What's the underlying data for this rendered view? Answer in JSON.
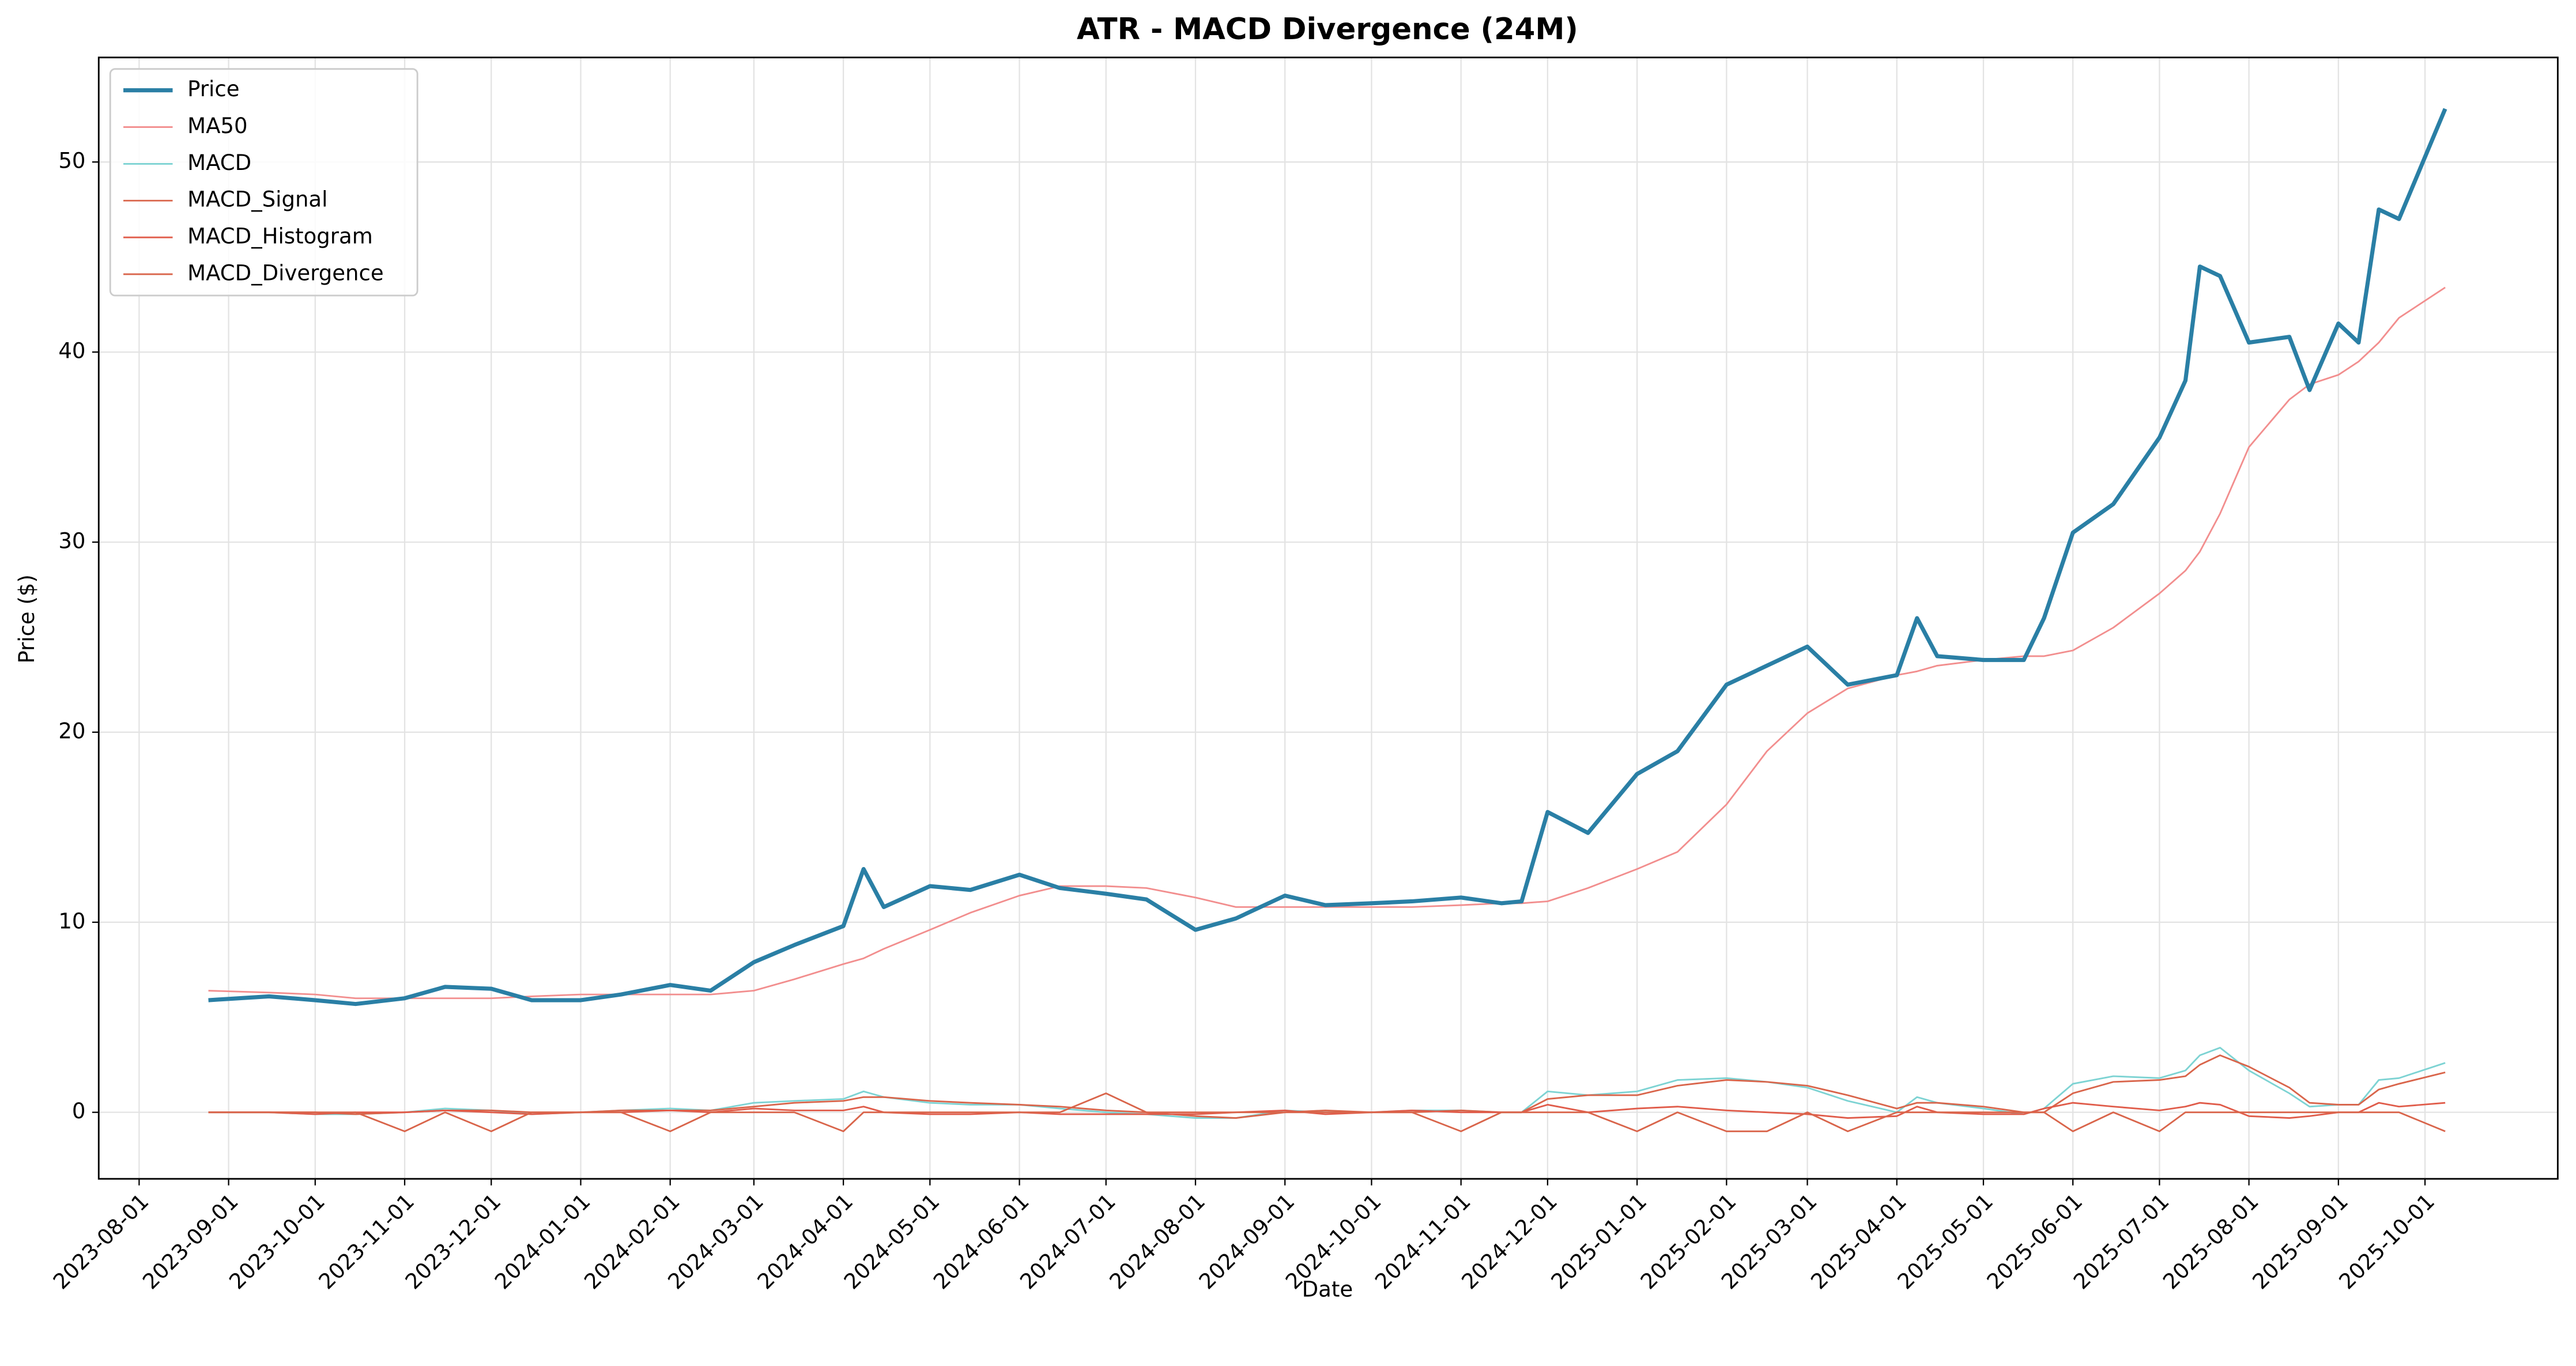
{
  "chart_data": {
    "type": "line",
    "title": "ATR - MACD Divergence (24M)",
    "x_label": "Date",
    "y_label": "Price ($)",
    "x": [
      "2023-08-25",
      "2023-09-15",
      "2023-10-01",
      "2023-10-15",
      "2023-11-01",
      "2023-11-15",
      "2023-12-01",
      "2023-12-15",
      "2024-01-01",
      "2024-01-15",
      "2024-02-01",
      "2024-02-15",
      "2024-03-01",
      "2024-03-15",
      "2024-04-01",
      "2024-04-08",
      "2024-04-15",
      "2024-05-01",
      "2024-05-15",
      "2024-06-01",
      "2024-06-15",
      "2024-07-01",
      "2024-07-15",
      "2024-08-01",
      "2024-08-15",
      "2024-09-01",
      "2024-09-15",
      "2024-10-01",
      "2024-10-15",
      "2024-11-01",
      "2024-11-15",
      "2024-11-22",
      "2024-12-01",
      "2024-12-15",
      "2025-01-01",
      "2025-01-15",
      "2025-02-01",
      "2025-02-15",
      "2025-03-01",
      "2025-03-15",
      "2025-04-01",
      "2025-04-08",
      "2025-04-15",
      "2025-05-01",
      "2025-05-15",
      "2025-05-22",
      "2025-06-01",
      "2025-06-15",
      "2025-07-01",
      "2025-07-10",
      "2025-07-15",
      "2025-07-22",
      "2025-08-01",
      "2025-08-15",
      "2025-08-22",
      "2025-09-01",
      "2025-09-08",
      "2025-09-15",
      "2025-09-22",
      "2025-10-08"
    ],
    "series": [
      {
        "name": "Price",
        "color": "#2a7fa5",
        "width": 2.5,
        "values": [
          5.9,
          6.1,
          5.9,
          5.7,
          6.0,
          6.6,
          6.5,
          5.9,
          5.9,
          6.2,
          6.7,
          6.4,
          7.9,
          8.8,
          9.8,
          12.8,
          10.8,
          11.9,
          11.7,
          12.5,
          11.8,
          11.5,
          11.2,
          9.6,
          10.2,
          11.4,
          10.9,
          11.0,
          11.1,
          11.3,
          11.0,
          11.1,
          15.8,
          14.7,
          17.8,
          19.0,
          22.5,
          23.5,
          24.5,
          22.5,
          23.0,
          26.0,
          24.0,
          23.8,
          23.8,
          26.0,
          30.5,
          32.0,
          35.5,
          38.5,
          44.5,
          44.0,
          40.5,
          40.8,
          38.0,
          41.5,
          40.5,
          47.5,
          47.0,
          52.8
        ]
      },
      {
        "name": "MA50",
        "color": "#f28e8e",
        "width": 1,
        "values": [
          6.4,
          6.3,
          6.2,
          6.0,
          6.0,
          6.0,
          6.0,
          6.1,
          6.2,
          6.2,
          6.2,
          6.2,
          6.4,
          7.0,
          7.8,
          8.1,
          8.6,
          9.6,
          10.5,
          11.4,
          11.9,
          11.9,
          11.8,
          11.3,
          10.8,
          10.8,
          10.8,
          10.8,
          10.8,
          10.9,
          11.0,
          11.0,
          11.1,
          11.8,
          12.8,
          13.7,
          16.2,
          19.0,
          21.0,
          22.3,
          23.0,
          23.2,
          23.5,
          23.8,
          24.0,
          24.0,
          24.3,
          25.5,
          27.3,
          28.5,
          29.5,
          31.5,
          35.0,
          37.5,
          38.3,
          38.8,
          39.5,
          40.5,
          41.8,
          43.4
        ]
      },
      {
        "name": "MACD",
        "color": "#7dd3d3",
        "width": 1,
        "values": [
          0,
          0,
          -0.1,
          -0.1,
          0,
          0.2,
          0.1,
          -0.1,
          0,
          0.1,
          0.2,
          0.1,
          0.5,
          0.6,
          0.7,
          1.1,
          0.8,
          0.5,
          0.4,
          0.4,
          0.2,
          0,
          -0.1,
          -0.3,
          -0.3,
          0.1,
          0,
          0,
          0.1,
          0.1,
          0,
          0,
          1.1,
          0.9,
          1.1,
          1.7,
          1.8,
          1.6,
          1.3,
          0.6,
          0,
          0.8,
          0.5,
          0.2,
          -0.1,
          0.2,
          1.5,
          1.9,
          1.8,
          2.2,
          3.0,
          3.4,
          2.2,
          1.0,
          0.3,
          0.4,
          0.4,
          1.7,
          1.8,
          2.6
        ]
      },
      {
        "name": "MACD_Signal",
        "color": "#d9654b",
        "width": 1,
        "values": [
          0,
          0,
          0,
          -0.1,
          0,
          0.1,
          0.1,
          0,
          0,
          0.1,
          0.1,
          0.1,
          0.3,
          0.5,
          0.6,
          0.8,
          0.8,
          0.6,
          0.5,
          0.4,
          0.3,
          0.1,
          0,
          -0.2,
          -0.3,
          0,
          0.1,
          0,
          0,
          0.1,
          0,
          0,
          0.7,
          0.9,
          0.9,
          1.4,
          1.7,
          1.6,
          1.4,
          0.9,
          0.2,
          0.5,
          0.5,
          0.3,
          0,
          0,
          1.0,
          1.6,
          1.7,
          1.9,
          2.5,
          3.0,
          2.4,
          1.3,
          0.5,
          0.4,
          0.4,
          1.2,
          1.5,
          2.1
        ]
      },
      {
        "name": "MACD_Histogram",
        "color": "#e05c4a",
        "width": 1,
        "values": [
          0,
          0,
          -0.1,
          0,
          0,
          0.1,
          0,
          -0.1,
          0,
          0,
          0.1,
          0,
          0.2,
          0.1,
          0.1,
          0.3,
          0,
          -0.1,
          -0.1,
          0,
          -0.1,
          -0.1,
          -0.1,
          -0.1,
          0,
          0.1,
          -0.1,
          0,
          0.1,
          0,
          0,
          0,
          0.4,
          0,
          0.2,
          0.3,
          0.1,
          0,
          -0.1,
          -0.3,
          -0.2,
          0.3,
          0,
          -0.1,
          -0.1,
          0.2,
          0.5,
          0.3,
          0.1,
          0.3,
          0.5,
          0.4,
          -0.2,
          -0.3,
          -0.2,
          0,
          0,
          0.5,
          0.3,
          0.5
        ]
      },
      {
        "name": "MACD_Divergence",
        "color": "#d9654b",
        "width": 1,
        "values": [
          0,
          0,
          0,
          0,
          -1,
          0,
          -1,
          0,
          0,
          0,
          -1,
          0,
          0,
          0,
          -1,
          0,
          0,
          0,
          0,
          0,
          0,
          1,
          0,
          0,
          0,
          0,
          0,
          0,
          0,
          -1,
          0,
          0,
          0,
          0,
          -1,
          0,
          -1,
          -1,
          0,
          -1,
          0,
          0,
          0,
          0,
          0,
          0,
          -1,
          0,
          -1,
          0,
          0,
          0,
          0,
          0,
          0,
          0,
          0,
          0,
          0,
          -1
        ]
      }
    ],
    "xlim": [
      "2023-07-18",
      "2025-11-16"
    ],
    "xticks": [
      "2023-08-01",
      "2023-09-01",
      "2023-10-01",
      "2023-11-01",
      "2023-12-01",
      "2024-01-01",
      "2024-02-01",
      "2024-03-01",
      "2024-04-01",
      "2024-05-01",
      "2024-06-01",
      "2024-07-01",
      "2024-08-01",
      "2024-09-01",
      "2024-10-01",
      "2024-11-01",
      "2024-12-01",
      "2025-01-01",
      "2025-02-01",
      "2025-03-01",
      "2025-04-01",
      "2025-05-01",
      "2025-06-01",
      "2025-07-01",
      "2025-08-01",
      "2025-09-01",
      "2025-10-01"
    ],
    "ylim": [
      -3.5,
      55.5
    ],
    "yticks": [
      0,
      10,
      20,
      30,
      40,
      50
    ],
    "grid": true,
    "legend": "upper left"
  }
}
